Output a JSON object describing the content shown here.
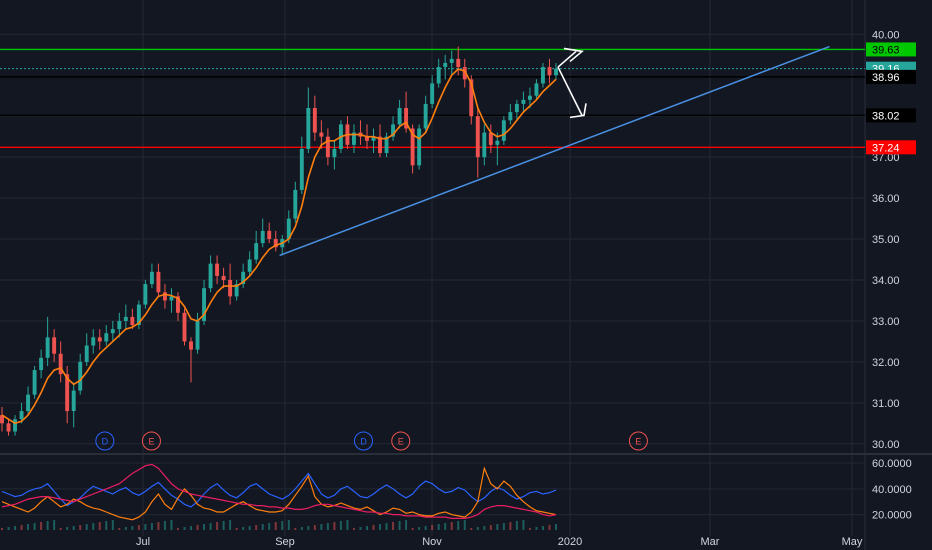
{
  "colors": {
    "background": "#131722",
    "grid": "#232834",
    "axis_text": "#d1d4dc",
    "candle_up": "#26a69a",
    "candle_down": "#ef5350",
    "ma": "#ff7f0e",
    "trendline": "#4a90e2",
    "resistance": "#00c800",
    "support": "#ff0000",
    "last_price": "#26a69a",
    "black_line": "#000000",
    "vol_blue": "#2962ff",
    "vol_orange": "#ff7f0e",
    "vol_red": "#e91e63",
    "arrow": "#ffffff"
  },
  "chart_data": [
    {
      "type": "candlestick",
      "title": "",
      "y_ticks": [
        30,
        31,
        32,
        33,
        34,
        35,
        36,
        37,
        38,
        40
      ],
      "y_tick_labels": [
        "30.00",
        "31.00",
        "32.00",
        "33.00",
        "34.00",
        "35.00",
        "36.00",
        "37.00",
        "38.00",
        "40.00"
      ],
      "x_tick_labels": [
        "Jul",
        "Sep",
        "Nov",
        "2020",
        "Mar",
        "May"
      ],
      "ylim": [
        29.8,
        40.3
      ],
      "grid": true,
      "price_tags": [
        {
          "value": 39.63,
          "label": "39.63",
          "style": "green"
        },
        {
          "value": 39.16,
          "label": "39.16",
          "style": "teal"
        },
        {
          "value": 38.96,
          "label": "38.96",
          "style": "dark"
        },
        {
          "value": 38.02,
          "label": "38.02",
          "style": "dark"
        },
        {
          "value": 37.24,
          "label": "37.24",
          "style": "red"
        }
      ],
      "horizontal_lines": [
        {
          "value": 39.63,
          "color": "resistance"
        },
        {
          "value": 38.96,
          "color": "black_line"
        },
        {
          "value": 38.02,
          "color": "black_line"
        },
        {
          "value": 37.24,
          "color": "support"
        }
      ],
      "trendline": {
        "from": {
          "date": "Aug 29",
          "value": 34.6
        },
        "to": {
          "date": "Apr 22",
          "value": 39.7
        }
      },
      "series": [
        {
          "name": "",
          "type": "ohlc",
          "points": [
            [
              30.7,
              30.9,
              30.3,
              30.5
            ],
            [
              30.5,
              30.6,
              30.2,
              30.3
            ],
            [
              30.3,
              30.7,
              30.2,
              30.6
            ],
            [
              30.6,
              31.0,
              30.5,
              30.8
            ],
            [
              30.8,
              31.4,
              30.7,
              31.2
            ],
            [
              31.2,
              31.9,
              31.1,
              31.8
            ],
            [
              31.8,
              32.3,
              31.6,
              32.1
            ],
            [
              32.1,
              33.1,
              31.9,
              32.6
            ],
            [
              32.6,
              32.8,
              32.0,
              32.2
            ],
            [
              32.2,
              32.5,
              31.5,
              31.7
            ],
            [
              31.7,
              31.9,
              30.5,
              30.8
            ],
            [
              30.8,
              31.5,
              30.4,
              31.3
            ],
            [
              31.3,
              32.2,
              31.2,
              32.0
            ],
            [
              32.0,
              32.7,
              31.9,
              32.4
            ],
            [
              32.4,
              32.8,
              32.2,
              32.6
            ],
            [
              32.6,
              32.8,
              32.3,
              32.5
            ],
            [
              32.5,
              32.9,
              32.4,
              32.7
            ],
            [
              32.7,
              33.0,
              32.5,
              32.8
            ],
            [
              32.8,
              33.2,
              32.6,
              33.0
            ],
            [
              33.0,
              33.4,
              32.8,
              33.1
            ],
            [
              33.1,
              33.3,
              32.8,
              32.9
            ],
            [
              32.9,
              33.5,
              32.8,
              33.4
            ],
            [
              33.4,
              34.0,
              33.3,
              33.9
            ],
            [
              33.9,
              34.4,
              33.8,
              34.2
            ],
            [
              34.2,
              34.4,
              33.6,
              33.7
            ],
            [
              33.7,
              33.9,
              33.3,
              33.5
            ],
            [
              33.5,
              33.8,
              33.2,
              33.6
            ],
            [
              33.6,
              33.7,
              33.0,
              33.2
            ],
            [
              33.2,
              33.3,
              32.4,
              32.5
            ],
            [
              32.5,
              32.6,
              31.5,
              32.3
            ],
            [
              32.3,
              33.2,
              32.2,
              33.0
            ],
            [
              33.0,
              34.0,
              32.9,
              33.8
            ],
            [
              33.8,
              34.6,
              33.7,
              34.4
            ],
            [
              34.4,
              34.6,
              33.9,
              34.1
            ],
            [
              34.1,
              34.3,
              33.8,
              34.0
            ],
            [
              34.0,
              34.4,
              33.4,
              33.6
            ],
            [
              33.6,
              34.0,
              33.5,
              33.9
            ],
            [
              33.9,
              34.4,
              33.8,
              34.2
            ],
            [
              34.2,
              34.7,
              34.1,
              34.5
            ],
            [
              34.5,
              35.2,
              34.4,
              34.9
            ],
            [
              34.9,
              35.5,
              34.8,
              35.2
            ],
            [
              35.2,
              35.4,
              34.9,
              35.0
            ],
            [
              35.0,
              35.2,
              34.7,
              34.8
            ],
            [
              34.8,
              35.1,
              34.6,
              35.0
            ],
            [
              35.0,
              35.7,
              34.9,
              35.5
            ],
            [
              35.5,
              36.4,
              35.4,
              36.2
            ],
            [
              36.2,
              37.5,
              36.1,
              37.2
            ],
            [
              37.2,
              38.7,
              37.1,
              38.2
            ],
            [
              38.2,
              38.5,
              37.4,
              37.6
            ],
            [
              37.6,
              37.9,
              37.2,
              37.5
            ],
            [
              37.5,
              37.7,
              36.8,
              37.0
            ],
            [
              37.0,
              37.4,
              36.7,
              37.2
            ],
            [
              37.2,
              37.9,
              37.1,
              37.8
            ],
            [
              37.8,
              38.0,
              37.2,
              37.3
            ],
            [
              37.3,
              37.8,
              37.1,
              37.6
            ],
            [
              37.6,
              37.9,
              37.3,
              37.5
            ],
            [
              37.5,
              37.8,
              37.2,
              37.4
            ],
            [
              37.4,
              37.7,
              37.1,
              37.5
            ],
            [
              37.5,
              37.8,
              37.0,
              37.1
            ],
            [
              37.1,
              37.6,
              37.0,
              37.5
            ],
            [
              37.5,
              38.0,
              37.4,
              37.8
            ],
            [
              37.8,
              38.4,
              37.7,
              38.2
            ],
            [
              38.2,
              38.6,
              37.6,
              37.7
            ],
            [
              37.7,
              37.8,
              36.6,
              36.8
            ],
            [
              36.8,
              37.8,
              36.7,
              37.7
            ],
            [
              37.7,
              38.5,
              37.6,
              38.3
            ],
            [
              38.3,
              39.0,
              38.2,
              38.8
            ],
            [
              38.8,
              39.4,
              38.7,
              39.2
            ],
            [
              39.2,
              39.5,
              38.9,
              39.3
            ],
            [
              39.3,
              39.6,
              39.0,
              39.4
            ],
            [
              39.4,
              39.7,
              39.0,
              39.2
            ],
            [
              39.2,
              39.4,
              38.7,
              38.9
            ],
            [
              38.9,
              39.0,
              37.8,
              38.0
            ],
            [
              38.0,
              38.2,
              36.5,
              37.0
            ],
            [
              37.0,
              37.8,
              36.8,
              37.6
            ],
            [
              37.6,
              37.8,
              37.1,
              37.3
            ],
            [
              37.3,
              37.6,
              36.8,
              37.4
            ],
            [
              37.4,
              38.0,
              37.3,
              37.9
            ],
            [
              37.9,
              38.3,
              37.8,
              38.1
            ],
            [
              38.1,
              38.4,
              37.9,
              38.3
            ],
            [
              38.3,
              38.6,
              38.1,
              38.4
            ],
            [
              38.4,
              38.7,
              38.2,
              38.5
            ],
            [
              38.5,
              38.9,
              38.4,
              38.8
            ],
            [
              38.8,
              39.3,
              38.7,
              39.2
            ],
            [
              39.2,
              39.4,
              38.8,
              39.0
            ],
            [
              39.0,
              39.3,
              38.9,
              39.16
            ]
          ]
        },
        {
          "name": "",
          "type": "line",
          "values": [
            30.7,
            30.6,
            30.5,
            30.55,
            30.7,
            30.95,
            31.25,
            31.6,
            31.8,
            31.85,
            31.6,
            31.45,
            31.55,
            31.75,
            32.0,
            32.2,
            32.35,
            32.5,
            32.65,
            32.8,
            32.85,
            32.95,
            33.15,
            33.4,
            33.6,
            33.65,
            33.62,
            33.55,
            33.35,
            33.05,
            33.0,
            33.15,
            33.45,
            33.7,
            33.85,
            33.85,
            33.85,
            33.95,
            34.1,
            34.3,
            34.55,
            34.75,
            34.85,
            34.9,
            35.0,
            35.3,
            35.8,
            36.5,
            37.0,
            37.3,
            37.4,
            37.4,
            37.5,
            37.55,
            37.55,
            37.55,
            37.5,
            37.5,
            37.45,
            37.45,
            37.55,
            37.75,
            37.85,
            37.55,
            37.45,
            37.6,
            37.95,
            38.35,
            38.7,
            39.0,
            39.15,
            39.1,
            38.8,
            38.2,
            37.85,
            37.6,
            37.5,
            37.55,
            37.7,
            37.9,
            38.1,
            38.25,
            38.4,
            38.6,
            38.75,
            38.9
          ]
        }
      ]
    },
    {
      "type": "line",
      "title": "",
      "y_ticks": [
        20,
        40,
        60
      ],
      "y_tick_labels": [
        "20.0000",
        "40.0000",
        "60.0000"
      ],
      "ylim": [
        8,
        64
      ],
      "grid": true,
      "series": [
        {
          "name": "",
          "color": "vol_blue",
          "values": [
            38,
            36,
            34,
            35,
            38,
            40,
            41,
            44,
            38,
            32,
            27,
            30,
            33,
            38,
            42,
            40,
            38,
            36,
            39,
            41,
            37,
            35,
            38,
            42,
            45,
            40,
            35,
            32,
            28,
            26,
            30,
            36,
            41,
            44,
            39,
            35,
            33,
            37,
            42,
            44,
            40,
            36,
            34,
            32,
            35,
            40,
            46,
            52,
            44,
            36,
            33,
            35,
            40,
            42,
            38,
            34,
            33,
            36,
            40,
            43,
            40,
            36,
            33,
            36,
            42,
            46,
            44,
            40,
            37,
            38,
            41,
            39,
            34,
            30,
            33,
            38,
            41,
            39,
            35,
            32,
            34,
            37,
            38,
            36,
            37,
            39
          ]
        },
        {
          "name": "",
          "color": "vol_orange",
          "values": [
            30,
            28,
            26,
            24,
            22,
            25,
            30,
            34,
            30,
            26,
            28,
            32,
            30,
            27,
            25,
            24,
            22,
            20,
            18,
            17,
            16,
            18,
            22,
            30,
            36,
            28,
            24,
            33,
            40,
            35,
            28,
            25,
            24,
            22,
            22,
            25,
            28,
            30,
            27,
            24,
            23,
            22,
            22,
            23,
            28,
            35,
            42,
            50,
            34,
            28,
            26,
            27,
            29,
            27,
            25,
            24,
            26,
            23,
            20,
            22,
            25,
            24,
            21,
            22,
            20,
            19,
            19,
            21,
            22,
            20,
            19,
            18,
            22,
            30,
            56,
            44,
            40,
            46,
            42,
            35,
            30,
            26,
            23,
            22,
            21,
            20
          ]
        },
        {
          "name": "",
          "color": "vol_red",
          "values": [
            26,
            27,
            28,
            30,
            32,
            33,
            34,
            34,
            33,
            32,
            31,
            30,
            32,
            34,
            36,
            38,
            40,
            42,
            44,
            48,
            52,
            55,
            58,
            59,
            56,
            50,
            44,
            40,
            38,
            36,
            35,
            34,
            33,
            32,
            31,
            30,
            29,
            28,
            28,
            27,
            27,
            26,
            26,
            25,
            25,
            24,
            24,
            25,
            27,
            28,
            28,
            27,
            26,
            25,
            24,
            23,
            22,
            22,
            21,
            21,
            20,
            20,
            19,
            19,
            19,
            18,
            18,
            18,
            18,
            17,
            17,
            17,
            18,
            20,
            24,
            26,
            27,
            27,
            26,
            25,
            24,
            23,
            22,
            20,
            19,
            20
          ]
        }
      ]
    }
  ],
  "events": [
    {
      "label": "D",
      "kind": "dividend",
      "date": "Jun 15"
    },
    {
      "label": "E",
      "kind": "earnings",
      "date": "Jul 5"
    },
    {
      "label": "D",
      "kind": "dividend",
      "date": "Oct 4"
    },
    {
      "label": "E",
      "kind": "earnings",
      "date": "Oct 20"
    },
    {
      "label": "E",
      "kind": "earnings",
      "date": "Jan 30"
    }
  ]
}
